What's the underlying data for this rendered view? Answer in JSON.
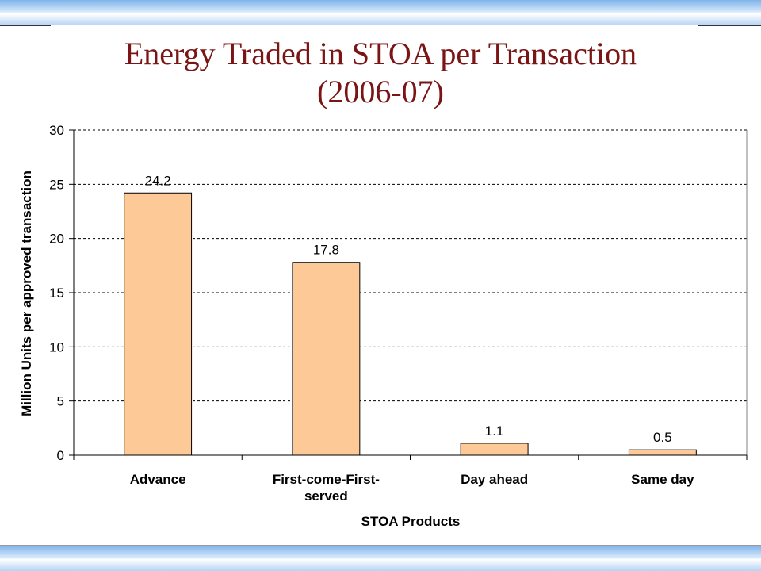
{
  "slide": {
    "title_line1": "Energy Traded in STOA per Transaction",
    "title_line2": "(2006-07)"
  },
  "colors": {
    "title": "#7b1515",
    "bar_fill": "#fdc997",
    "bar_stroke": "#000000",
    "grid": "#000000",
    "band": "#9fc6f0"
  },
  "chart_data": {
    "type": "bar",
    "categories": [
      "Advance",
      "First-come-First-served",
      "Day ahead",
      "Same day"
    ],
    "category_label_lines": [
      [
        "Advance"
      ],
      [
        "First-come-First-",
        "served"
      ],
      [
        "Day ahead"
      ],
      [
        "Same day"
      ]
    ],
    "values": [
      24.2,
      17.8,
      1.1,
      0.5
    ],
    "data_labels": [
      "24.2",
      "17.8",
      "1.1",
      "0.5"
    ],
    "xlabel": "STOA Products",
    "ylabel": "Million Units per approved transaction",
    "ylim": [
      0,
      30
    ],
    "yticks": [
      0,
      5,
      10,
      15,
      20,
      25,
      30
    ],
    "grid": true,
    "grid_style": "dashed",
    "legend": "none"
  }
}
